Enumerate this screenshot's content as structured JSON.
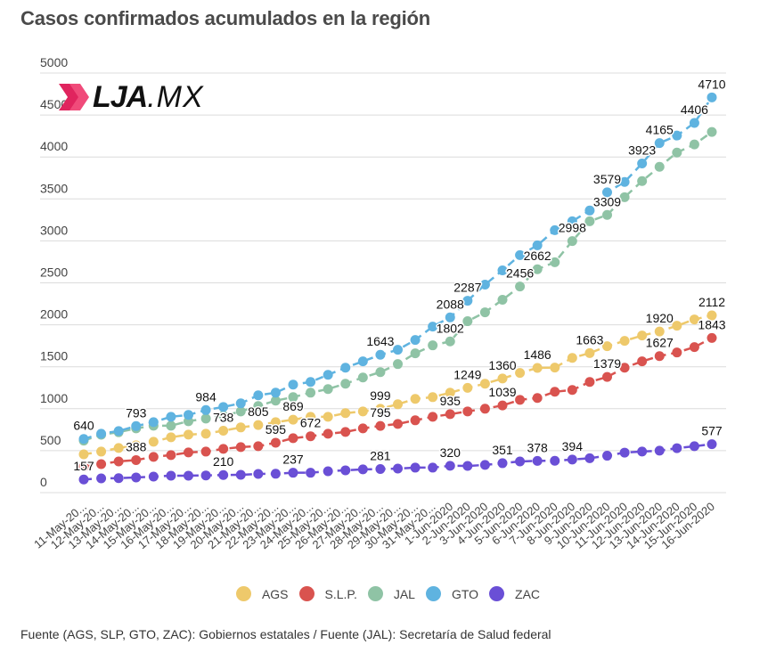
{
  "title": "Casos confirmados acumulados en la región",
  "logo": {
    "mark": "LJA",
    "suffix": ".MX",
    "chevron_color": "#e0245e"
  },
  "footer": "Fuente (AGS, SLP, GTO, ZAC): Gobiernos estatales / Fuente (JAL): Secretaría de Salud federal",
  "chart_data": {
    "type": "line",
    "title": "Casos confirmados acumulados en la región",
    "xlabel": "",
    "ylabel": "",
    "ylim": [
      0,
      5000
    ],
    "yticks": [
      0,
      500,
      1000,
      1500,
      2000,
      2500,
      3000,
      3500,
      4000,
      4500,
      5000
    ],
    "grid": true,
    "legend_position": "bottom",
    "x": [
      "11-May-20...",
      "12-May-20...",
      "13-May-20...",
      "14-May-20...",
      "15-May-20...",
      "16-May-20...",
      "17-May-20...",
      "18-May-20...",
      "19-May-20...",
      "20-May-20...",
      "21-May-20...",
      "22-May-20...",
      "23-May-20...",
      "24-May-20...",
      "25-May-20...",
      "26-May-20...",
      "27-May-20...",
      "28-May-20...",
      "29-May-20...",
      "30-May-20...",
      "31-May-20...",
      "1-Jun-2020",
      "2-Jun-2020",
      "3-Jun-2020",
      "4-Jun-2020",
      "5-Jun-2020",
      "6-Jun-2020",
      "7-Jun-2020",
      "8-Jun-2020",
      "9-Jun-2020",
      "10-Jun-2020",
      "11-Jun-2020",
      "12-Jun-2020",
      "13-Jun-2020",
      "14-Jun-2020",
      "15-Jun-2020",
      "16-Jun-2020"
    ],
    "series": [
      {
        "name": "AGS",
        "color": "#eec96b",
        "values": [
          457,
          489,
          532,
          564,
          606,
          660,
          691,
          702,
          738,
          777,
          805,
          840,
          869,
          904,
          904,
          947,
          968,
          999,
          1053,
          1117,
          1138,
          1191,
          1249,
          1298,
          1360,
          1426,
          1486,
          1490,
          1606,
          1663,
          1745,
          1809,
          1872,
          1920,
          1989,
          2064,
          2112
        ],
        "labels": {
          "8": "738",
          "10": "805",
          "12": "869",
          "17": "999",
          "22": "1249",
          "24": "1360",
          "26": "1486",
          "29": "1663",
          "33": "1920",
          "36": "2112"
        }
      },
      {
        "name": "S.L.P.",
        "color": "#d9534f",
        "values": [
          309,
          340,
          372,
          388,
          426,
          447,
          479,
          489,
          521,
          543,
          553,
          595,
          649,
          672,
          702,
          723,
          766,
          795,
          819,
          862,
          904,
          935,
          968,
          1000,
          1039,
          1106,
          1128,
          1202,
          1223,
          1319,
          1379,
          1489,
          1564,
          1627,
          1670,
          1734,
          1843
        ],
        "labels": {
          "3": "388",
          "11": "595",
          "13": "672",
          "17": "795",
          "21": "935",
          "24": "1039",
          "30": "1379",
          "33": "1627",
          "36": "1843"
        }
      },
      {
        "name": "JAL",
        "color": "#8fc3a5",
        "values": [
          620,
          690,
          720,
          766,
          798,
          798,
          851,
          883,
          915,
          968,
          1032,
          1096,
          1138,
          1191,
          1234,
          1298,
          1372,
          1436,
          1532,
          1660,
          1755,
          1802,
          2043,
          2149,
          2298,
          2456,
          2662,
          2745,
          2998,
          3234,
          3309,
          3521,
          3713,
          3883,
          4053,
          4149,
          4298
        ],
        "labels": {
          "21": "1802",
          "25": "2456",
          "26": "2662",
          "28": "2998",
          "30": "3309"
        }
      },
      {
        "name": "GTO",
        "color": "#5fb3e0",
        "values": [
          640,
          702,
          734,
          793,
          840,
          904,
          926,
          984,
          1021,
          1064,
          1160,
          1191,
          1287,
          1319,
          1404,
          1489,
          1564,
          1643,
          1702,
          1819,
          1979,
          2088,
          2287,
          2479,
          2649,
          2830,
          2947,
          3128,
          3234,
          3362,
          3579,
          3702,
          3923,
          4165,
          4255,
          4406,
          4710
        ],
        "labels": {
          "0": "640",
          "3": "793",
          "7": "984",
          "17": "1643",
          "21": "2088",
          "22": "2287",
          "30": "3579",
          "32": "3923",
          "33": "4165",
          "35": "4406",
          "36": "4710"
        }
      },
      {
        "name": "ZAC",
        "color": "#6a4fd6",
        "values": [
          157,
          170,
          172,
          181,
          191,
          202,
          202,
          205,
          210,
          212,
          223,
          225,
          237,
          237,
          255,
          266,
          277,
          281,
          287,
          298,
          298,
          320,
          318,
          330,
          351,
          372,
          378,
          380,
          394,
          410,
          440,
          477,
          490,
          500,
          530,
          553,
          577
        ],
        "labels": {
          "0": "157",
          "8": "210",
          "12": "237",
          "17": "281",
          "21": "320",
          "24": "351",
          "26": "378",
          "28": "394",
          "36": "577"
        }
      }
    ]
  }
}
